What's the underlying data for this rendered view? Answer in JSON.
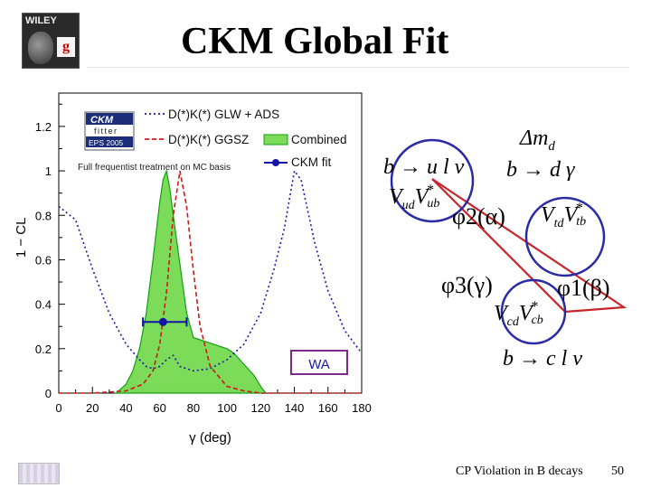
{
  "slide": {
    "title": "CKM Global Fit",
    "footer": "CP Violation in B decays",
    "page_number": "50",
    "logo_text": "WILEY"
  },
  "chart_data": {
    "type": "line",
    "xlabel": "γ   (deg)",
    "ylabel": "1 − CL",
    "xlim": [
      0,
      180
    ],
    "ylim": [
      0,
      1.35
    ],
    "x_ticks": [
      "0",
      "20",
      "40",
      "60",
      "80",
      "100",
      "120",
      "140",
      "160",
      "180"
    ],
    "y_ticks": [
      "0",
      "0.2",
      "0.4",
      "0.6",
      "0.8",
      "1",
      "1.2"
    ],
    "note": "Full frequentist treatment on MC basis",
    "badge": {
      "line1": "CKM",
      "line2": "fitter",
      "line3": "EPS 2005"
    },
    "wa_label": "WA",
    "series": [
      {
        "name": "D(*)K(*) GLW + ADS",
        "style": "dotted",
        "color": "#1a1aa6",
        "x": [
          0,
          10,
          20,
          30,
          40,
          48,
          52,
          56,
          60,
          64,
          68,
          72,
          80,
          90,
          100,
          110,
          120,
          128,
          134,
          140,
          144,
          148,
          152,
          160,
          170,
          180
        ],
        "y": [
          0.84,
          0.78,
          0.56,
          0.36,
          0.22,
          0.15,
          0.12,
          0.11,
          0.12,
          0.15,
          0.17,
          0.12,
          0.1,
          0.11,
          0.15,
          0.22,
          0.36,
          0.56,
          0.74,
          1.0,
          0.96,
          0.82,
          0.68,
          0.46,
          0.28,
          0.18
        ]
      },
      {
        "name": "D(*)K(*) GGSZ",
        "style": "dashed",
        "color": "#cc1a1a",
        "x": [
          0,
          20,
          40,
          50,
          56,
          60,
          64,
          68,
          72,
          76,
          80,
          84,
          90,
          100,
          110,
          120,
          140,
          160,
          180
        ],
        "y": [
          0.0,
          0.0,
          0.01,
          0.04,
          0.1,
          0.22,
          0.45,
          0.8,
          1.0,
          0.84,
          0.55,
          0.3,
          0.12,
          0.03,
          0.01,
          0.0,
          0.0,
          0.0,
          0.0
        ]
      },
      {
        "name": "Combined",
        "style": "filled",
        "color": "#11a011",
        "fill": "#7cdc5a",
        "x": [
          34,
          40,
          44,
          48,
          52,
          56,
          60,
          62,
          64,
          66,
          68,
          72,
          76,
          80,
          84,
          88,
          92,
          96,
          100,
          104,
          110,
          116,
          120,
          123
        ],
        "y": [
          0.0,
          0.04,
          0.1,
          0.2,
          0.36,
          0.6,
          0.86,
          0.96,
          1.0,
          0.92,
          0.8,
          0.58,
          0.36,
          0.25,
          0.24,
          0.23,
          0.22,
          0.21,
          0.2,
          0.18,
          0.13,
          0.08,
          0.03,
          0.0
        ]
      }
    ],
    "fit_point": {
      "name": "CKM fit",
      "x": 62,
      "y": 0.32,
      "xerr_low": 12,
      "xerr_high": 14,
      "color": "#1414a8"
    }
  },
  "triangle": {
    "label_top_left": "b → u l ν",
    "label_top_right_a": "Δm",
    "label_top_right_a_sub": "d",
    "label_top_right_b": "b → d γ",
    "vertex_left": {
      "v1": "V",
      "v1_sub": "ud",
      "v2": "V",
      "v2_sub": "ub",
      "star": "*"
    },
    "vertex_right": {
      "v1": "V",
      "v1_sub": "td",
      "v2": "V",
      "v2_sub": "tb",
      "star": "*"
    },
    "vertex_bottom": {
      "v1": "V",
      "v1_sub": "cd",
      "v2": "V",
      "v2_sub": "cb",
      "star": "*"
    },
    "phi2": "φ2(α)",
    "phi3": "φ3(γ)",
    "phi1": "φ1(β)",
    "label_bottom": "b → c l ν",
    "colors": {
      "triangle": "#c8242a",
      "circle": "#2a2aa8"
    }
  }
}
